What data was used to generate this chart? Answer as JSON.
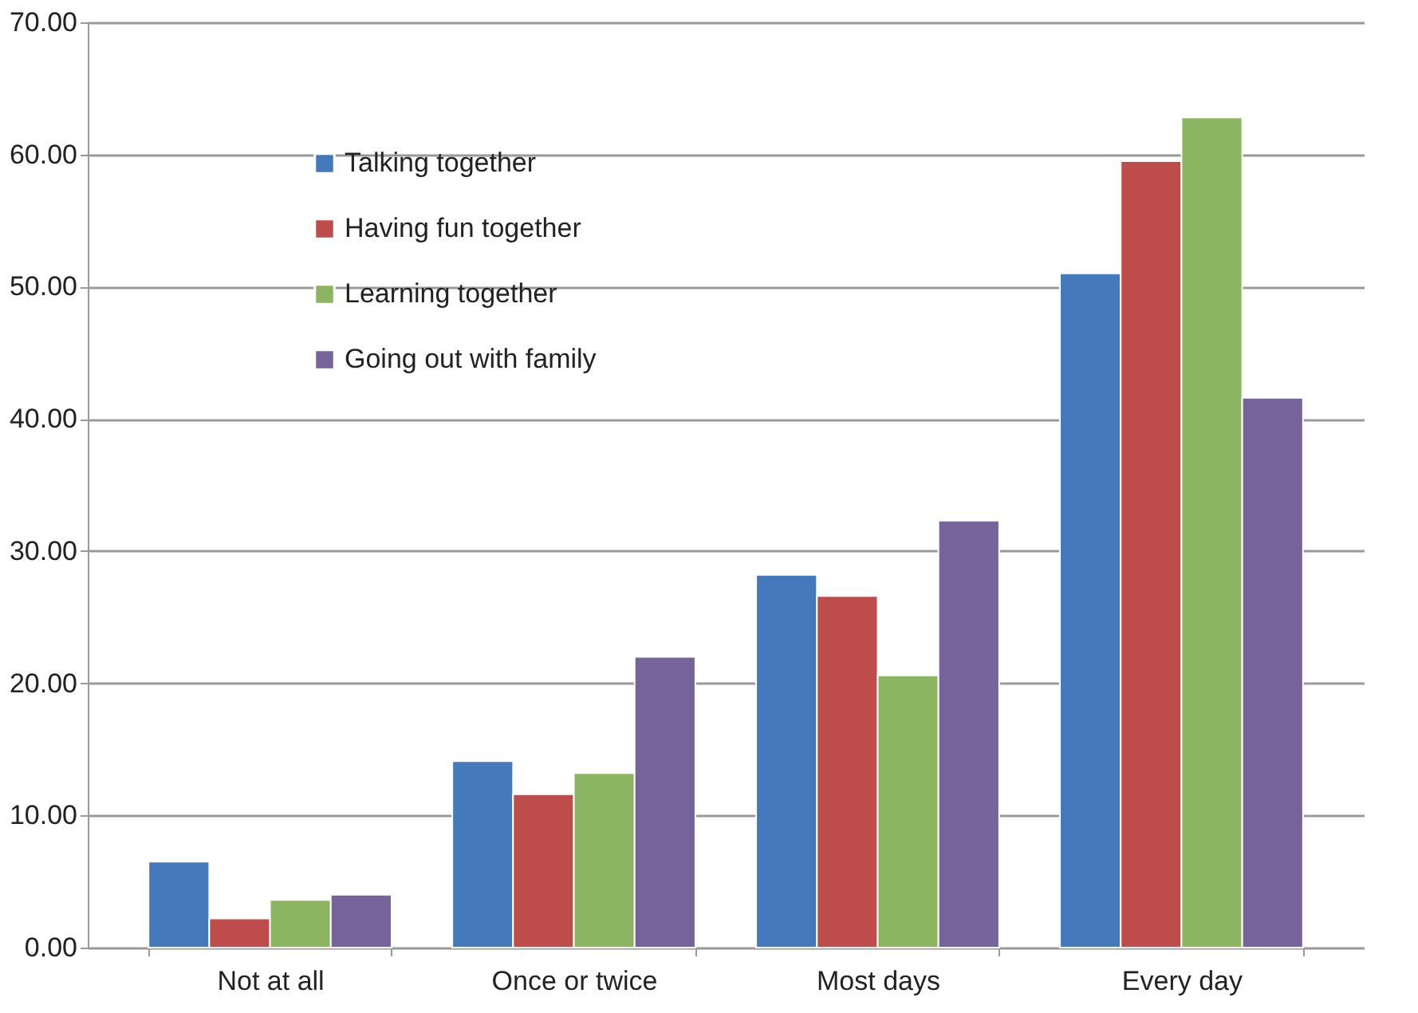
{
  "chart_data": {
    "type": "bar",
    "categories": [
      "Not at all",
      "Once or twice",
      "Most days",
      "Every day"
    ],
    "series": [
      {
        "name": "Talking together",
        "color": "#4479bb",
        "values": [
          6.5,
          14.1,
          28.2,
          51.0
        ]
      },
      {
        "name": "Having fun together",
        "color": "#be4c4a",
        "values": [
          2.2,
          11.6,
          26.6,
          59.5
        ]
      },
      {
        "name": "Learning together",
        "color": "#8bb560",
        "values": [
          3.6,
          13.2,
          20.6,
          62.8
        ]
      },
      {
        "name": "Going out with family",
        "color": "#76639a",
        "values": [
          4.0,
          22.0,
          32.3,
          41.6
        ]
      }
    ],
    "ylim": [
      0,
      70
    ],
    "yticks": [
      {
        "value": 0,
        "label": "0.00"
      },
      {
        "value": 10,
        "label": "10.00"
      },
      {
        "value": 20,
        "label": "20.00"
      },
      {
        "value": 30,
        "label": "30.00"
      },
      {
        "value": 40,
        "label": "40.00"
      },
      {
        "value": 50,
        "label": "50.00"
      },
      {
        "value": 60,
        "label": "60.00"
      },
      {
        "value": 70,
        "label": "70.00"
      }
    ],
    "grid": "y",
    "legend": "top left"
  }
}
